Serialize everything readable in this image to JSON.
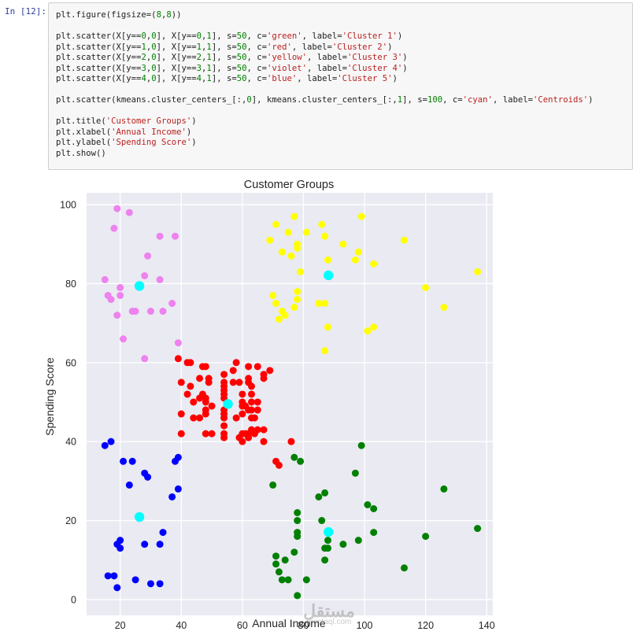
{
  "cell": {
    "prompt": "In [12]:",
    "lines": [
      [
        {
          "t": "plt.figure(figsize=("
        },
        {
          "t": "8",
          "c": "n"
        },
        {
          "t": ","
        },
        {
          "t": "8",
          "c": "n"
        },
        {
          "t": "))"
        }
      ],
      [],
      [
        {
          "t": "plt.scatter(X[y=="
        },
        {
          "t": "0",
          "c": "n"
        },
        {
          "t": ","
        },
        {
          "t": "0",
          "c": "n"
        },
        {
          "t": "], X[y=="
        },
        {
          "t": "0",
          "c": "n"
        },
        {
          "t": ","
        },
        {
          "t": "1",
          "c": "n"
        },
        {
          "t": "], s="
        },
        {
          "t": "50",
          "c": "n"
        },
        {
          "t": ", c="
        },
        {
          "t": "'green'",
          "c": "s"
        },
        {
          "t": ", label="
        },
        {
          "t": "'Cluster 1'",
          "c": "s"
        },
        {
          "t": ")"
        }
      ],
      [
        {
          "t": "plt.scatter(X[y=="
        },
        {
          "t": "1",
          "c": "n"
        },
        {
          "t": ","
        },
        {
          "t": "0",
          "c": "n"
        },
        {
          "t": "], X[y=="
        },
        {
          "t": "1",
          "c": "n"
        },
        {
          "t": ","
        },
        {
          "t": "1",
          "c": "n"
        },
        {
          "t": "], s="
        },
        {
          "t": "50",
          "c": "n"
        },
        {
          "t": ", c="
        },
        {
          "t": "'red'",
          "c": "s"
        },
        {
          "t": ", label="
        },
        {
          "t": "'Cluster 2'",
          "c": "s"
        },
        {
          "t": ")"
        }
      ],
      [
        {
          "t": "plt.scatter(X[y=="
        },
        {
          "t": "2",
          "c": "n"
        },
        {
          "t": ","
        },
        {
          "t": "0",
          "c": "n"
        },
        {
          "t": "], X[y=="
        },
        {
          "t": "2",
          "c": "n"
        },
        {
          "t": ","
        },
        {
          "t": "1",
          "c": "n"
        },
        {
          "t": "], s="
        },
        {
          "t": "50",
          "c": "n"
        },
        {
          "t": ", c="
        },
        {
          "t": "'yellow'",
          "c": "s"
        },
        {
          "t": ", label="
        },
        {
          "t": "'Cluster 3'",
          "c": "s"
        },
        {
          "t": ")"
        }
      ],
      [
        {
          "t": "plt.scatter(X[y=="
        },
        {
          "t": "3",
          "c": "n"
        },
        {
          "t": ","
        },
        {
          "t": "0",
          "c": "n"
        },
        {
          "t": "], X[y=="
        },
        {
          "t": "3",
          "c": "n"
        },
        {
          "t": ","
        },
        {
          "t": "1",
          "c": "n"
        },
        {
          "t": "], s="
        },
        {
          "t": "50",
          "c": "n"
        },
        {
          "t": ", c="
        },
        {
          "t": "'violet'",
          "c": "s"
        },
        {
          "t": ", label="
        },
        {
          "t": "'Cluster 4'",
          "c": "s"
        },
        {
          "t": ")"
        }
      ],
      [
        {
          "t": "plt.scatter(X[y=="
        },
        {
          "t": "4",
          "c": "n"
        },
        {
          "t": ","
        },
        {
          "t": "0",
          "c": "n"
        },
        {
          "t": "], X[y=="
        },
        {
          "t": "4",
          "c": "n"
        },
        {
          "t": ","
        },
        {
          "t": "1",
          "c": "n"
        },
        {
          "t": "], s="
        },
        {
          "t": "50",
          "c": "n"
        },
        {
          "t": ", c="
        },
        {
          "t": "'blue'",
          "c": "s"
        },
        {
          "t": ", label="
        },
        {
          "t": "'Cluster 5'",
          "c": "s"
        },
        {
          "t": ")"
        }
      ],
      [],
      [
        {
          "t": "plt.scatter(kmeans.cluster_centers_[:,"
        },
        {
          "t": "0",
          "c": "n"
        },
        {
          "t": "], kmeans.cluster_centers_[:,"
        },
        {
          "t": "1",
          "c": "n"
        },
        {
          "t": "], s="
        },
        {
          "t": "100",
          "c": "n"
        },
        {
          "t": ", c="
        },
        {
          "t": "'cyan'",
          "c": "s"
        },
        {
          "t": ", label="
        },
        {
          "t": "'Centroids'",
          "c": "s"
        },
        {
          "t": ")"
        }
      ],
      [],
      [
        {
          "t": "plt.title("
        },
        {
          "t": "'Customer Groups'",
          "c": "s"
        },
        {
          "t": ")"
        }
      ],
      [
        {
          "t": "plt.xlabel("
        },
        {
          "t": "'Annual Income'",
          "c": "s"
        },
        {
          "t": ")"
        }
      ],
      [
        {
          "t": "plt.ylabel("
        },
        {
          "t": "'Spending Score'",
          "c": "s"
        },
        {
          "t": ")"
        }
      ],
      [
        {
          "t": "plt.show()"
        }
      ]
    ]
  },
  "watermark": "مستقل",
  "watermark_sub": "mostaql.com",
  "chart_data": {
    "type": "scatter",
    "title": "Customer Groups",
    "xlabel": "Annual Income",
    "ylabel": "Spending Score",
    "xlim": [
      9,
      142
    ],
    "ylim": [
      -4,
      103
    ],
    "xticks": [
      20,
      40,
      60,
      80,
      100,
      120,
      140
    ],
    "yticks": [
      0,
      20,
      40,
      60,
      80,
      100
    ],
    "grid": true,
    "background": "#eaeaf2",
    "series": [
      {
        "color": "#008000",
        "points": [
          [
            70,
            29
          ],
          [
            71,
            11
          ],
          [
            71,
            9
          ],
          [
            72,
            7
          ],
          [
            73,
            5
          ],
          [
            74,
            10
          ],
          [
            75,
            5
          ],
          [
            77,
            12
          ],
          [
            77,
            36
          ],
          [
            78,
            22
          ],
          [
            78,
            20
          ],
          [
            78,
            17
          ],
          [
            78,
            16
          ],
          [
            78,
            1
          ],
          [
            79,
            35
          ],
          [
            81,
            5
          ],
          [
            85,
            26
          ],
          [
            86,
            20
          ],
          [
            87,
            27
          ],
          [
            87,
            13
          ],
          [
            87,
            10
          ],
          [
            88,
            13
          ],
          [
            88,
            15
          ],
          [
            93,
            14
          ],
          [
            97,
            32
          ],
          [
            98,
            15
          ],
          [
            99,
            39
          ],
          [
            101,
            24
          ],
          [
            103,
            23
          ],
          [
            103,
            17
          ],
          [
            113,
            8
          ],
          [
            120,
            16
          ],
          [
            126,
            28
          ],
          [
            137,
            18
          ]
        ]
      },
      {
        "color": "#ff0000",
        "points": [
          [
            39,
            61
          ],
          [
            40,
            55
          ],
          [
            40,
            47
          ],
          [
            40,
            42
          ],
          [
            42,
            60
          ],
          [
            42,
            52
          ],
          [
            43,
            60
          ],
          [
            43,
            54
          ],
          [
            44,
            46
          ],
          [
            44,
            50
          ],
          [
            46,
            51
          ],
          [
            46,
            56
          ],
          [
            46,
            46
          ],
          [
            47,
            52
          ],
          [
            47,
            59
          ],
          [
            48,
            59
          ],
          [
            48,
            51
          ],
          [
            48,
            50
          ],
          [
            48,
            47
          ],
          [
            48,
            48
          ],
          [
            48,
            42
          ],
          [
            49,
            55
          ],
          [
            49,
            56
          ],
          [
            50,
            49
          ],
          [
            50,
            42
          ],
          [
            54,
            47
          ],
          [
            54,
            54
          ],
          [
            54,
            53
          ],
          [
            54,
            48
          ],
          [
            54,
            52
          ],
          [
            54,
            42
          ],
          [
            54,
            51
          ],
          [
            54,
            55
          ],
          [
            54,
            41
          ],
          [
            54,
            44
          ],
          [
            54,
            57
          ],
          [
            54,
            46
          ],
          [
            57,
            58
          ],
          [
            57,
            55
          ],
          [
            58,
            60
          ],
          [
            58,
            46
          ],
          [
            59,
            55
          ],
          [
            59,
            41
          ],
          [
            60,
            49
          ],
          [
            60,
            40
          ],
          [
            60,
            42
          ],
          [
            60,
            52
          ],
          [
            60,
            47
          ],
          [
            60,
            50
          ],
          [
            61,
            42
          ],
          [
            61,
            49
          ],
          [
            62,
            41
          ],
          [
            62,
            48
          ],
          [
            62,
            59
          ],
          [
            62,
            55
          ],
          [
            62,
            56
          ],
          [
            62,
            42
          ],
          [
            63,
            50
          ],
          [
            63,
            46
          ],
          [
            63,
            43
          ],
          [
            63,
            48
          ],
          [
            63,
            52
          ],
          [
            63,
            54
          ],
          [
            64,
            42
          ],
          [
            64,
            46
          ],
          [
            65,
            48
          ],
          [
            65,
            50
          ],
          [
            65,
            43
          ],
          [
            65,
            59
          ],
          [
            67,
            43
          ],
          [
            67,
            57
          ],
          [
            67,
            56
          ],
          [
            67,
            40
          ],
          [
            69,
            58
          ],
          [
            71,
            35
          ],
          [
            72,
            34
          ],
          [
            76,
            40
          ]
        ]
      },
      {
        "color": "#ffff00",
        "points": [
          [
            69,
            91
          ],
          [
            70,
            77
          ],
          [
            71,
            95
          ],
          [
            71,
            75
          ],
          [
            71,
            75
          ],
          [
            72,
            71
          ],
          [
            73,
            88
          ],
          [
            73,
            73
          ],
          [
            74,
            72
          ],
          [
            75,
            93
          ],
          [
            76,
            87
          ],
          [
            77,
            97
          ],
          [
            77,
            74
          ],
          [
            78,
            90
          ],
          [
            78,
            76
          ],
          [
            78,
            89
          ],
          [
            78,
            78
          ],
          [
            79,
            83
          ],
          [
            81,
            93
          ],
          [
            85,
            75
          ],
          [
            86,
            95
          ],
          [
            87,
            63
          ],
          [
            87,
            75
          ],
          [
            87,
            92
          ],
          [
            88,
            86
          ],
          [
            88,
            69
          ],
          [
            93,
            90
          ],
          [
            97,
            86
          ],
          [
            98,
            88
          ],
          [
            99,
            97
          ],
          [
            101,
            68
          ],
          [
            103,
            85
          ],
          [
            103,
            69
          ],
          [
            113,
            91
          ],
          [
            120,
            79
          ],
          [
            126,
            74
          ],
          [
            137,
            83
          ]
        ]
      },
      {
        "color": "#ee82ee",
        "points": [
          [
            15,
            81
          ],
          [
            16,
            77
          ],
          [
            17,
            76
          ],
          [
            18,
            94
          ],
          [
            19,
            72
          ],
          [
            19,
            99
          ],
          [
            20,
            77
          ],
          [
            20,
            79
          ],
          [
            21,
            66
          ],
          [
            23,
            98
          ],
          [
            24,
            73
          ],
          [
            25,
            73
          ],
          [
            28,
            82
          ],
          [
            28,
            61
          ],
          [
            29,
            87
          ],
          [
            30,
            73
          ],
          [
            33,
            92
          ],
          [
            33,
            81
          ],
          [
            34,
            73
          ],
          [
            37,
            75
          ],
          [
            38,
            92
          ],
          [
            39,
            65
          ]
        ]
      },
      {
        "color": "#0000ff",
        "points": [
          [
            15,
            39
          ],
          [
            16,
            6
          ],
          [
            17,
            40
          ],
          [
            18,
            6
          ],
          [
            19,
            3
          ],
          [
            19,
            14
          ],
          [
            20,
            15
          ],
          [
            20,
            13
          ],
          [
            21,
            35
          ],
          [
            23,
            29
          ],
          [
            24,
            35
          ],
          [
            25,
            5
          ],
          [
            28,
            14
          ],
          [
            28,
            32
          ],
          [
            29,
            31
          ],
          [
            30,
            4
          ],
          [
            33,
            4
          ],
          [
            33,
            14
          ],
          [
            34,
            17
          ],
          [
            37,
            26
          ],
          [
            38,
            35
          ],
          [
            39,
            36
          ],
          [
            39,
            28
          ]
        ]
      },
      {
        "color": "#00ffff",
        "name": "Centroids",
        "points": [
          [
            26.3,
            79.4
          ],
          [
            55.3,
            49.5
          ],
          [
            88.2,
            82.1
          ],
          [
            88.2,
            17.1
          ],
          [
            26.3,
            20.9
          ]
        ]
      }
    ]
  }
}
